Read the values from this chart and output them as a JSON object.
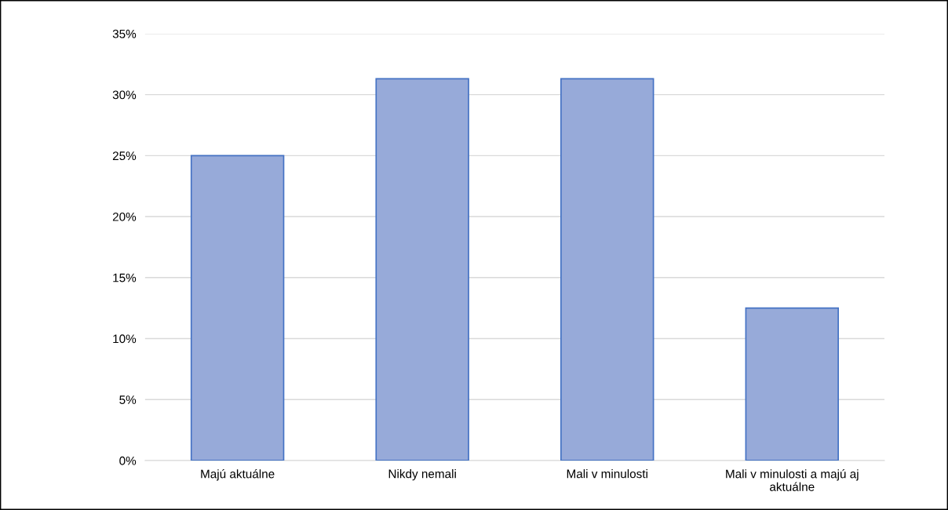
{
  "chart_data": {
    "type": "bar",
    "categories": [
      "Majú aktuálne",
      "Nikdy nemali",
      "Mali v minulosti",
      "Mali v minulosti a majú aj\naktuálne"
    ],
    "values": [
      25,
      31.3,
      31.3,
      12.5
    ],
    "color": "#97aad9",
    "ylim": [
      0,
      35
    ],
    "yticks": [
      {
        "value": 0,
        "label": "0%"
      },
      {
        "value": 5,
        "label": "5%"
      },
      {
        "value": 10,
        "label": "10%"
      },
      {
        "value": 15,
        "label": "15%"
      },
      {
        "value": 20,
        "label": "20%"
      },
      {
        "value": 25,
        "label": "25%"
      },
      {
        "value": 30,
        "label": "30%"
      },
      {
        "value": 35,
        "label": "35%"
      }
    ],
    "grid": "y",
    "legend": false
  }
}
